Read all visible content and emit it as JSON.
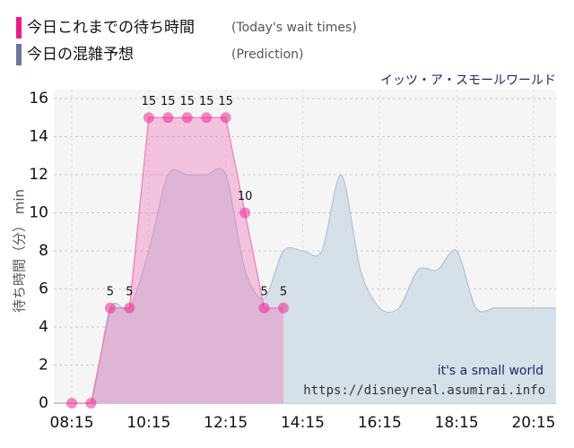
{
  "chart_data": {
    "type": "area",
    "subtitle": "イッツ・ア・スモールワールド",
    "ylabel": "待ち時間（分） min",
    "watermark": "it's a small world",
    "source": "https://disneyreal.asumirai.info",
    "xlim": [
      "07:47",
      "20:50"
    ],
    "xticks": [
      "08:15",
      "10:15",
      "12:15",
      "14:15",
      "16:15",
      "18:15",
      "20:15"
    ],
    "ylim": [
      0,
      16
    ],
    "yticks": [
      0,
      2,
      4,
      6,
      8,
      10,
      12,
      14,
      16
    ],
    "grid": true,
    "series": [
      {
        "name": "今日の混雑予想",
        "legend_note": "(Prediction)",
        "color": "#66799e",
        "fill": "#d5e0e8",
        "stroke": "#b3c2cf",
        "points": false,
        "x": [
          "08:15",
          "08:45",
          "09:15",
          "09:45",
          "10:15",
          "10:45",
          "11:15",
          "11:45",
          "12:15",
          "12:45",
          "13:15",
          "13:45",
          "14:15",
          "14:45",
          "15:15",
          "15:45",
          "16:15",
          "16:45",
          "17:15",
          "17:45",
          "18:15",
          "18:45",
          "19:15",
          "19:45",
          "20:15",
          "20:50"
        ],
        "values": [
          0,
          0,
          5,
          5,
          8,
          12,
          12,
          12,
          12,
          7,
          5.5,
          8,
          8,
          8,
          12,
          7,
          5,
          5,
          7,
          7,
          8,
          5,
          5,
          5,
          5,
          5
        ]
      },
      {
        "name": "今日これまでの待ち時間",
        "legend_note": "(Today's wait times)",
        "color": "#f0198c",
        "fill": "rgba(240,110,185,0.38)",
        "stroke": "#f07ab8",
        "points": true,
        "x": [
          "08:15",
          "08:45",
          "09:15",
          "09:45",
          "10:15",
          "10:45",
          "11:15",
          "11:45",
          "12:15",
          "12:45",
          "13:15",
          "13:45"
        ],
        "values": [
          0,
          0,
          5,
          5,
          15,
          15,
          15,
          15,
          15,
          10,
          5,
          5
        ]
      }
    ]
  }
}
